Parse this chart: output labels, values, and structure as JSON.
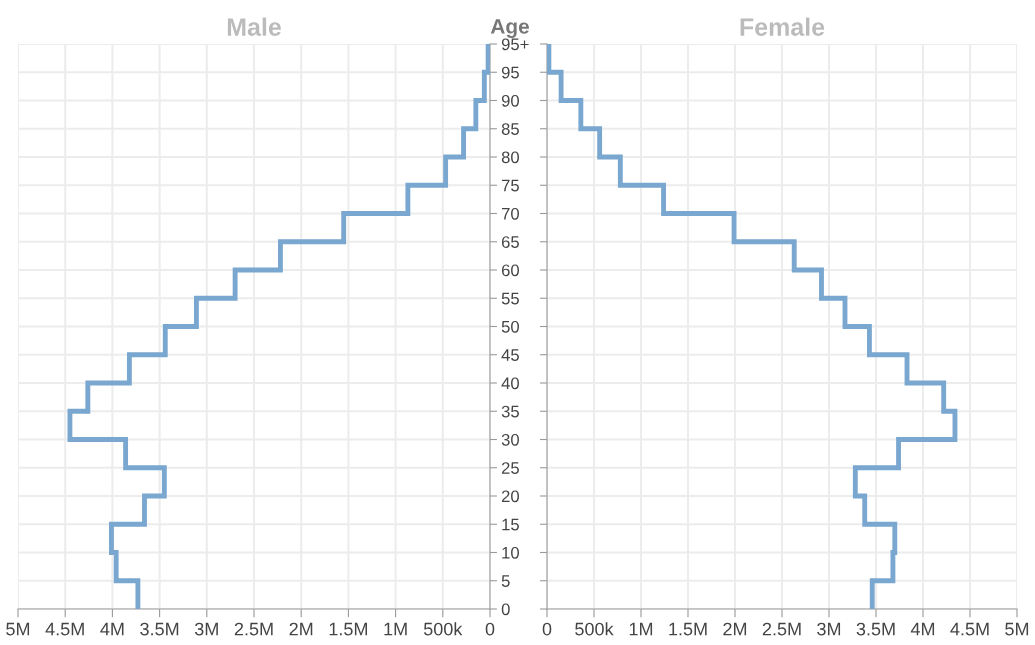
{
  "chart_data": [
    {
      "type": "step",
      "title": "Male",
      "ylabel": "Age",
      "orientation": "horizontal",
      "grid": true,
      "color": "#7aa7d0",
      "x": [
        0,
        5,
        10,
        15,
        20,
        25,
        30,
        35,
        40,
        45,
        50,
        55,
        60,
        65,
        70,
        75,
        80,
        85,
        90,
        95,
        100
      ],
      "values": [
        3730000,
        3960000,
        4010000,
        3660000,
        3450000,
        3860000,
        4450000,
        4260000,
        3820000,
        3440000,
        3110000,
        2700000,
        2220000,
        1550000,
        870000,
        470000,
        280000,
        150000,
        60000,
        20000,
        20000
      ],
      "xlim": [
        5000000,
        0
      ],
      "xticks": [
        {
          "value": 5000000,
          "label": "5M"
        },
        {
          "value": 4500000,
          "label": "4.5M"
        },
        {
          "value": 4000000,
          "label": "4M"
        },
        {
          "value": 3500000,
          "label": "3.5M"
        },
        {
          "value": 3000000,
          "label": "3M"
        },
        {
          "value": 2500000,
          "label": "2.5M"
        },
        {
          "value": 2000000,
          "label": "2M"
        },
        {
          "value": 1500000,
          "label": "1.5M"
        },
        {
          "value": 1000000,
          "label": "1M"
        },
        {
          "value": 500000,
          "label": "500k"
        },
        0
      ],
      "ylim": [
        0,
        100
      ],
      "yticks": [
        0,
        5,
        10,
        15,
        20,
        25,
        30,
        35,
        40,
        45,
        50,
        55,
        60,
        65,
        70,
        75,
        80,
        85,
        90,
        95,
        {
          "value": 100,
          "label": "95+"
        }
      ]
    },
    {
      "type": "step",
      "title": "Female",
      "orientation": "horizontal",
      "grid": true,
      "color": "#7aa7d0",
      "tick_labels": "x",
      "x": [
        0,
        5,
        10,
        15,
        20,
        25,
        30,
        35,
        40,
        45,
        50,
        55,
        60,
        65,
        70,
        75,
        80,
        85,
        90,
        95,
        100
      ],
      "values": [
        3460000,
        3680000,
        3700000,
        3380000,
        3280000,
        3740000,
        4340000,
        4220000,
        3830000,
        3430000,
        3170000,
        2920000,
        2630000,
        1990000,
        1240000,
        780000,
        560000,
        360000,
        150000,
        20000,
        20000
      ],
      "xlim": [
        0,
        5000000
      ],
      "xticks": [
        0,
        {
          "value": 500000,
          "label": "500k"
        },
        {
          "value": 1000000,
          "label": "1M"
        },
        {
          "value": 1500000,
          "label": "1.5M"
        },
        {
          "value": 2000000,
          "label": "2M"
        },
        {
          "value": 2500000,
          "label": "2.5M"
        },
        {
          "value": 3000000,
          "label": "3M"
        },
        {
          "value": 3500000,
          "label": "3.5M"
        },
        {
          "value": 4000000,
          "label": "4M"
        },
        {
          "value": 4500000,
          "label": "4.5M"
        },
        {
          "value": 5000000,
          "label": "5M"
        }
      ],
      "ylim": [
        0,
        100
      ],
      "yticks": [
        {
          "value": 0,
          "label": null
        },
        {
          "value": 5,
          "label": null
        },
        {
          "value": 10,
          "label": null
        },
        {
          "value": 15,
          "label": null
        },
        {
          "value": 20,
          "label": null
        },
        {
          "value": 25,
          "label": null
        },
        {
          "value": 30,
          "label": null
        },
        {
          "value": 35,
          "label": null
        },
        {
          "value": 40,
          "label": null
        },
        {
          "value": 45,
          "label": null
        },
        {
          "value": 50,
          "label": null
        },
        {
          "value": 55,
          "label": null
        },
        {
          "value": 60,
          "label": null
        },
        {
          "value": 65,
          "label": null
        },
        {
          "value": 70,
          "label": null
        },
        {
          "value": 75,
          "label": null
        },
        {
          "value": 80,
          "label": null
        },
        {
          "value": 85,
          "label": null
        },
        {
          "value": 90,
          "label": null
        },
        {
          "value": 95,
          "label": null
        },
        {
          "value": 100,
          "label": null
        }
      ]
    }
  ]
}
